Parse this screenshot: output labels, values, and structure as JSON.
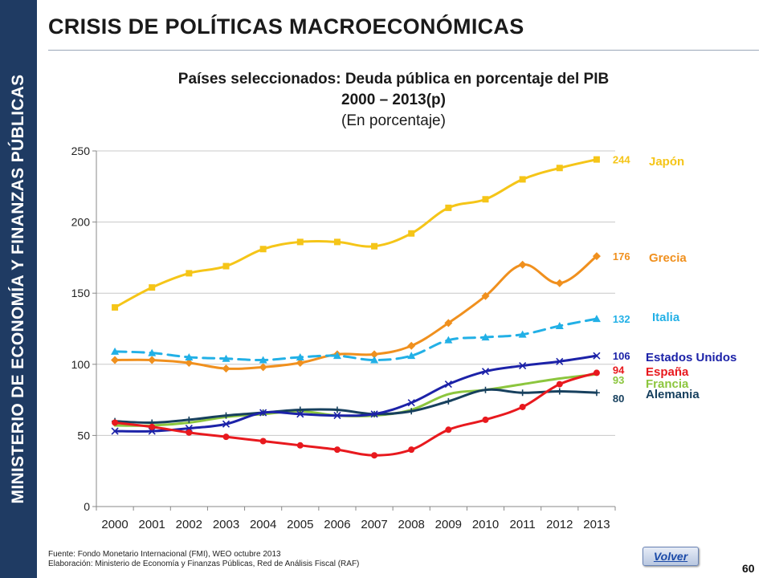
{
  "sidebar": {
    "text": "MINISTERIO DE ECONOMÍA Y FINANZAS PÚBLICAS"
  },
  "page": {
    "title": "CRISIS DE POLÍTICAS MACROECONÓMICAS",
    "page_number": "60",
    "volver_label": "Volver"
  },
  "footer": {
    "source": "Fuente: Fondo Monetario Internacional (FMI), WEO octubre 2013",
    "elaboration": "Elaboración: Ministerio de Economía y Finanzas Públicas, Red de Análisis Fiscal (RAF)"
  },
  "chart_data": {
    "type": "line",
    "title": "Países seleccionados: Deuda pública en porcentaje del PIB",
    "subtitle": "2000 – 2013(p)",
    "unit_note": "(En porcentaje)",
    "xlabel": "",
    "ylabel": "",
    "x": [
      "2000",
      "2001",
      "2002",
      "2003",
      "2004",
      "2005",
      "2006",
      "2007",
      "2008",
      "2009",
      "2010",
      "2011",
      "2012",
      "2013"
    ],
    "ylim": [
      0,
      250
    ],
    "yticks": [
      0,
      50,
      100,
      150,
      200,
      250
    ],
    "grid": true,
    "series": [
      {
        "name": "Japón",
        "color": "#f5c518",
        "marker": "square",
        "dash": false,
        "end_label": "244",
        "values": [
          140,
          154,
          164,
          169,
          181,
          186,
          186,
          183,
          192,
          210,
          216,
          230,
          238,
          244
        ]
      },
      {
        "name": "Grecia",
        "color": "#f0901e",
        "marker": "diamond",
        "dash": false,
        "end_label": "176",
        "values": [
          103,
          103,
          101,
          97,
          98,
          101,
          107,
          107,
          113,
          129,
          148,
          170,
          157,
          176
        ]
      },
      {
        "name": "Italia",
        "color": "#22b0e6",
        "marker": "triangle",
        "dash": true,
        "end_label": "132",
        "values": [
          109,
          108,
          105,
          104,
          103,
          105,
          106,
          103,
          106,
          117,
          119,
          121,
          127,
          132
        ]
      },
      {
        "name": "Estados Unidos",
        "color": "#1c22a8",
        "marker": "cross",
        "dash": false,
        "end_label": "106",
        "values": [
          53,
          53,
          55,
          58,
          66,
          65,
          64,
          65,
          73,
          86,
          95,
          99,
          102,
          106
        ]
      },
      {
        "name": "España",
        "color": "#e8191e",
        "marker": "circle",
        "dash": false,
        "end_label": "94",
        "values": [
          59,
          56,
          52,
          49,
          46,
          43,
          40,
          36,
          40,
          54,
          61,
          70,
          86,
          94
        ]
      },
      {
        "name": "Francia",
        "color": "#8cc63e",
        "marker": "none",
        "dash": false,
        "end_label": "93",
        "values": [
          57,
          57,
          59,
          63,
          65,
          67,
          64,
          64,
          68,
          79,
          82,
          86,
          90,
          93
        ]
      },
      {
        "name": "Alemania",
        "color": "#17405e",
        "marker": "plus",
        "dash": false,
        "end_label": "80",
        "values": [
          60,
          59,
          61,
          64,
          66,
          68,
          68,
          65,
          67,
          74,
          82,
          80,
          81,
          80
        ]
      }
    ]
  }
}
